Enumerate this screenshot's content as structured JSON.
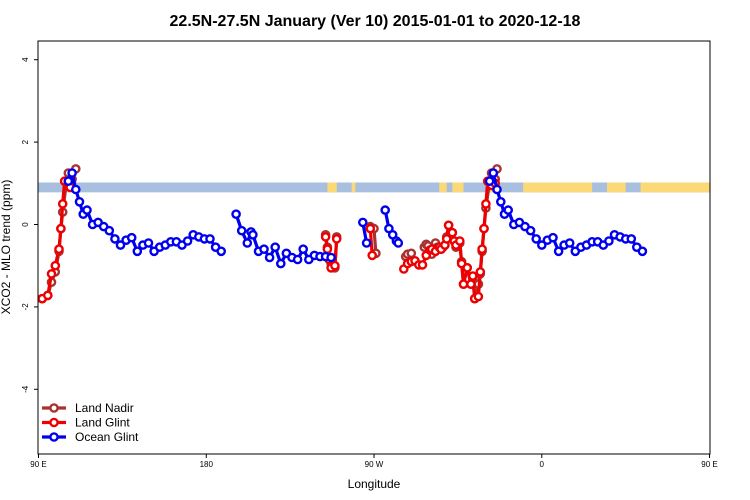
{
  "chart_data": {
    "type": "line",
    "title": "22.5N-27.5N January (Ver 10)   2015-01-01 to 2020-12-18",
    "xlabel": "Longitude",
    "ylabel": "XCO2 - MLO trend (ppm)",
    "xlim": [
      90,
      450
    ],
    "ylim": [
      -5.5,
      4.4
    ],
    "x_ticks": [
      {
        "value": 90,
        "label": "90 E"
      },
      {
        "value": 180,
        "label": "180"
      },
      {
        "value": 270,
        "label": "90 W"
      },
      {
        "value": 360,
        "label": "0"
      },
      {
        "value": 450,
        "label": "90 E"
      },
      {
        "value": 540,
        "label": "180"
      }
    ],
    "y_ticks": [
      {
        "value": 4,
        "label": "4"
      },
      {
        "value": 2,
        "label": "2"
      },
      {
        "value": 0,
        "label": "0"
      },
      {
        "value": -2,
        "label": "-2"
      },
      {
        "value": -4,
        "label": "-4"
      }
    ],
    "grid": false,
    "legend_position": "bottom-left",
    "surface_band": {
      "y_range": [
        0.78,
        1.02
      ],
      "ocean_color": "#a8bfe0",
      "land_color": "#fcd977",
      "land_segments": [
        [
          245,
          250
        ],
        [
          258,
          260
        ],
        [
          305,
          309
        ],
        [
          312,
          318
        ],
        [
          331,
          335
        ],
        [
          350,
          387
        ],
        [
          395,
          405
        ],
        [
          413,
          460
        ]
      ]
    },
    "series": [
      {
        "name": "Land Nadir",
        "color": "#a83232",
        "segments": [
          [
            [
              92,
              -1.8
            ],
            [
              95,
              -1.72
            ],
            [
              97,
              -1.4
            ],
            [
              99,
              -1.15
            ],
            [
              101,
              -0.65
            ],
            [
              102,
              -0.1
            ],
            [
              103,
              0.3
            ],
            [
              105,
              1.05
            ],
            [
              106,
              1.25
            ],
            [
              108,
              1.1
            ],
            [
              110,
              1.35
            ]
          ],
          [
            [
              244,
              -0.25
            ],
            [
              245,
              -0.55
            ],
            [
              246,
              -0.85
            ],
            [
              247,
              -0.95
            ],
            [
              249,
              -1.05
            ],
            [
              250,
              -0.3
            ]
          ],
          [
            [
              268,
              -0.05
            ],
            [
              270,
              -0.1
            ],
            [
              271,
              -0.7
            ]
          ],
          [
            [
              287,
              -0.78
            ],
            [
              288,
              -0.72
            ],
            [
              290,
              -0.7
            ]
          ],
          [
            [
              297,
              -0.55
            ],
            [
              298,
              -0.48
            ],
            [
              299,
              -0.52
            ],
            [
              301,
              -0.72
            ],
            [
              302,
              -0.62
            ],
            [
              303,
              -0.45
            ],
            [
              304,
              -0.55
            ],
            [
              305,
              -0.58
            ],
            [
              306,
              -0.6
            ],
            [
              307,
              -0.55
            ],
            [
              308,
              -0.5
            ],
            [
              309,
              -0.3
            ],
            [
              310,
              -0.02
            ],
            [
              312,
              -0.2
            ],
            [
              313,
              -0.4
            ],
            [
              314,
              -0.55
            ],
            [
              316,
              -0.45
            ],
            [
              317,
              -0.9
            ],
            [
              318,
              -1.45
            ],
            [
              320,
              -1.05
            ],
            [
              322,
              -1.45
            ],
            [
              323,
              -1.3
            ],
            [
              324,
              -1.8
            ],
            [
              326,
              -1.45
            ],
            [
              327,
              -1.2
            ],
            [
              328,
              -0.65
            ],
            [
              329,
              -0.1
            ],
            [
              330,
              0.4
            ],
            [
              332,
              1.05
            ],
            [
              333,
              1.25
            ],
            [
              335,
              1.1
            ],
            [
              336,
              1.35
            ]
          ]
        ]
      },
      {
        "name": "Land Glint",
        "color": "#ee0000",
        "segments": [
          [
            [
              92,
              -1.8
            ],
            [
              95,
              -1.72
            ],
            [
              97,
              -1.2
            ],
            [
              99,
              -1.0
            ],
            [
              101,
              -0.6
            ],
            [
              102,
              -0.1
            ],
            [
              103,
              0.5
            ],
            [
              104,
              1.05
            ],
            [
              106,
              1.0
            ],
            [
              107,
              0.9
            ]
          ],
          [
            [
              244,
              -0.3
            ],
            [
              245,
              -0.6
            ],
            [
              246,
              -0.85
            ],
            [
              247,
              -1.05
            ],
            [
              249,
              -1.0
            ],
            [
              250,
              -0.35
            ]
          ],
          [
            [
              268,
              -0.1
            ],
            [
              269,
              -0.75
            ]
          ],
          [
            [
              286,
              -1.08
            ],
            [
              288,
              -0.95
            ],
            [
              290,
              -0.9
            ],
            [
              292,
              -0.88
            ],
            [
              294,
              -0.98
            ],
            [
              296,
              -0.98
            ],
            [
              298,
              -0.75
            ],
            [
              300,
              -0.62
            ],
            [
              301,
              -0.6
            ],
            [
              303,
              -0.65
            ],
            [
              305,
              -0.55
            ],
            [
              306,
              -0.6
            ],
            [
              308,
              -0.5
            ],
            [
              309,
              -0.35
            ],
            [
              310,
              -0.02
            ],
            [
              312,
              -0.2
            ],
            [
              313,
              -0.4
            ],
            [
              314,
              -0.5
            ],
            [
              316,
              -0.4
            ],
            [
              317,
              -0.95
            ],
            [
              318,
              -1.45
            ],
            [
              320,
              -1.05
            ],
            [
              322,
              -1.45
            ],
            [
              323,
              -1.25
            ],
            [
              324,
              -1.8
            ],
            [
              326,
              -1.75
            ],
            [
              327,
              -1.15
            ],
            [
              328,
              -0.6
            ],
            [
              329,
              -0.1
            ],
            [
              330,
              0.5
            ],
            [
              331,
              1.05
            ],
            [
              333,
              0.95
            ],
            [
              335,
              1.0
            ]
          ]
        ]
      },
      {
        "name": "Ocean Glint",
        "color": "#0000ee",
        "segments": [
          [
            [
              106,
              1.05
            ],
            [
              108,
              1.25
            ],
            [
              110,
              0.85
            ],
            [
              112,
              0.55
            ],
            [
              114,
              0.25
            ],
            [
              116,
              0.35
            ],
            [
              119,
              0.0
            ],
            [
              122,
              0.05
            ],
            [
              125,
              -0.05
            ],
            [
              128,
              -0.15
            ],
            [
              131,
              -0.35
            ],
            [
              134,
              -0.5
            ],
            [
              137,
              -0.38
            ],
            [
              140,
              -0.32
            ],
            [
              143,
              -0.65
            ],
            [
              146,
              -0.5
            ],
            [
              149,
              -0.45
            ],
            [
              152,
              -0.65
            ],
            [
              155,
              -0.55
            ],
            [
              158,
              -0.5
            ],
            [
              161,
              -0.42
            ],
            [
              164,
              -0.42
            ],
            [
              167,
              -0.5
            ],
            [
              170,
              -0.4
            ],
            [
              173,
              -0.25
            ],
            [
              176,
              -0.3
            ],
            [
              179,
              -0.35
            ],
            [
              182,
              -0.35
            ],
            [
              185,
              -0.55
            ],
            [
              188,
              -0.65
            ]
          ],
          [
            [
              196,
              0.25
            ],
            [
              199,
              -0.15
            ],
            [
              202,
              -0.45
            ],
            [
              204,
              -0.18
            ],
            [
              205,
              -0.25
            ],
            [
              208,
              -0.65
            ],
            [
              211,
              -0.6
            ],
            [
              214,
              -0.8
            ],
            [
              217,
              -0.55
            ],
            [
              220,
              -0.95
            ],
            [
              223,
              -0.7
            ],
            [
              226,
              -0.8
            ],
            [
              229,
              -0.85
            ],
            [
              232,
              -0.6
            ],
            [
              235,
              -0.85
            ],
            [
              238,
              -0.75
            ],
            [
              241,
              -0.78
            ],
            [
              244,
              -0.78
            ],
            [
              247,
              -0.8
            ]
          ],
          [
            [
              264,
              0.05
            ],
            [
              266,
              -0.45
            ]
          ],
          [
            [
              276,
              0.35
            ],
            [
              278,
              -0.1
            ],
            [
              280,
              -0.25
            ],
            [
              282,
              -0.4
            ],
            [
              283,
              -0.45
            ]
          ],
          [
            [
              332,
              1.05
            ],
            [
              334,
              1.25
            ],
            [
              336,
              0.85
            ],
            [
              338,
              0.55
            ],
            [
              340,
              0.25
            ],
            [
              342,
              0.35
            ],
            [
              345,
              0.0
            ],
            [
              348,
              0.05
            ],
            [
              351,
              -0.05
            ],
            [
              354,
              -0.15
            ],
            [
              357,
              -0.35
            ],
            [
              360,
              -0.5
            ],
            [
              363,
              -0.38
            ],
            [
              366,
              -0.32
            ],
            [
              369,
              -0.65
            ],
            [
              372,
              -0.5
            ],
            [
              375,
              -0.45
            ],
            [
              378,
              -0.65
            ],
            [
              381,
              -0.55
            ],
            [
              384,
              -0.5
            ],
            [
              387,
              -0.42
            ],
            [
              390,
              -0.42
            ],
            [
              393,
              -0.5
            ],
            [
              396,
              -0.4
            ],
            [
              399,
              -0.25
            ],
            [
              402,
              -0.3
            ],
            [
              405,
              -0.35
            ],
            [
              408,
              -0.35
            ],
            [
              411,
              -0.55
            ],
            [
              414,
              -0.65
            ]
          ]
        ]
      }
    ]
  }
}
